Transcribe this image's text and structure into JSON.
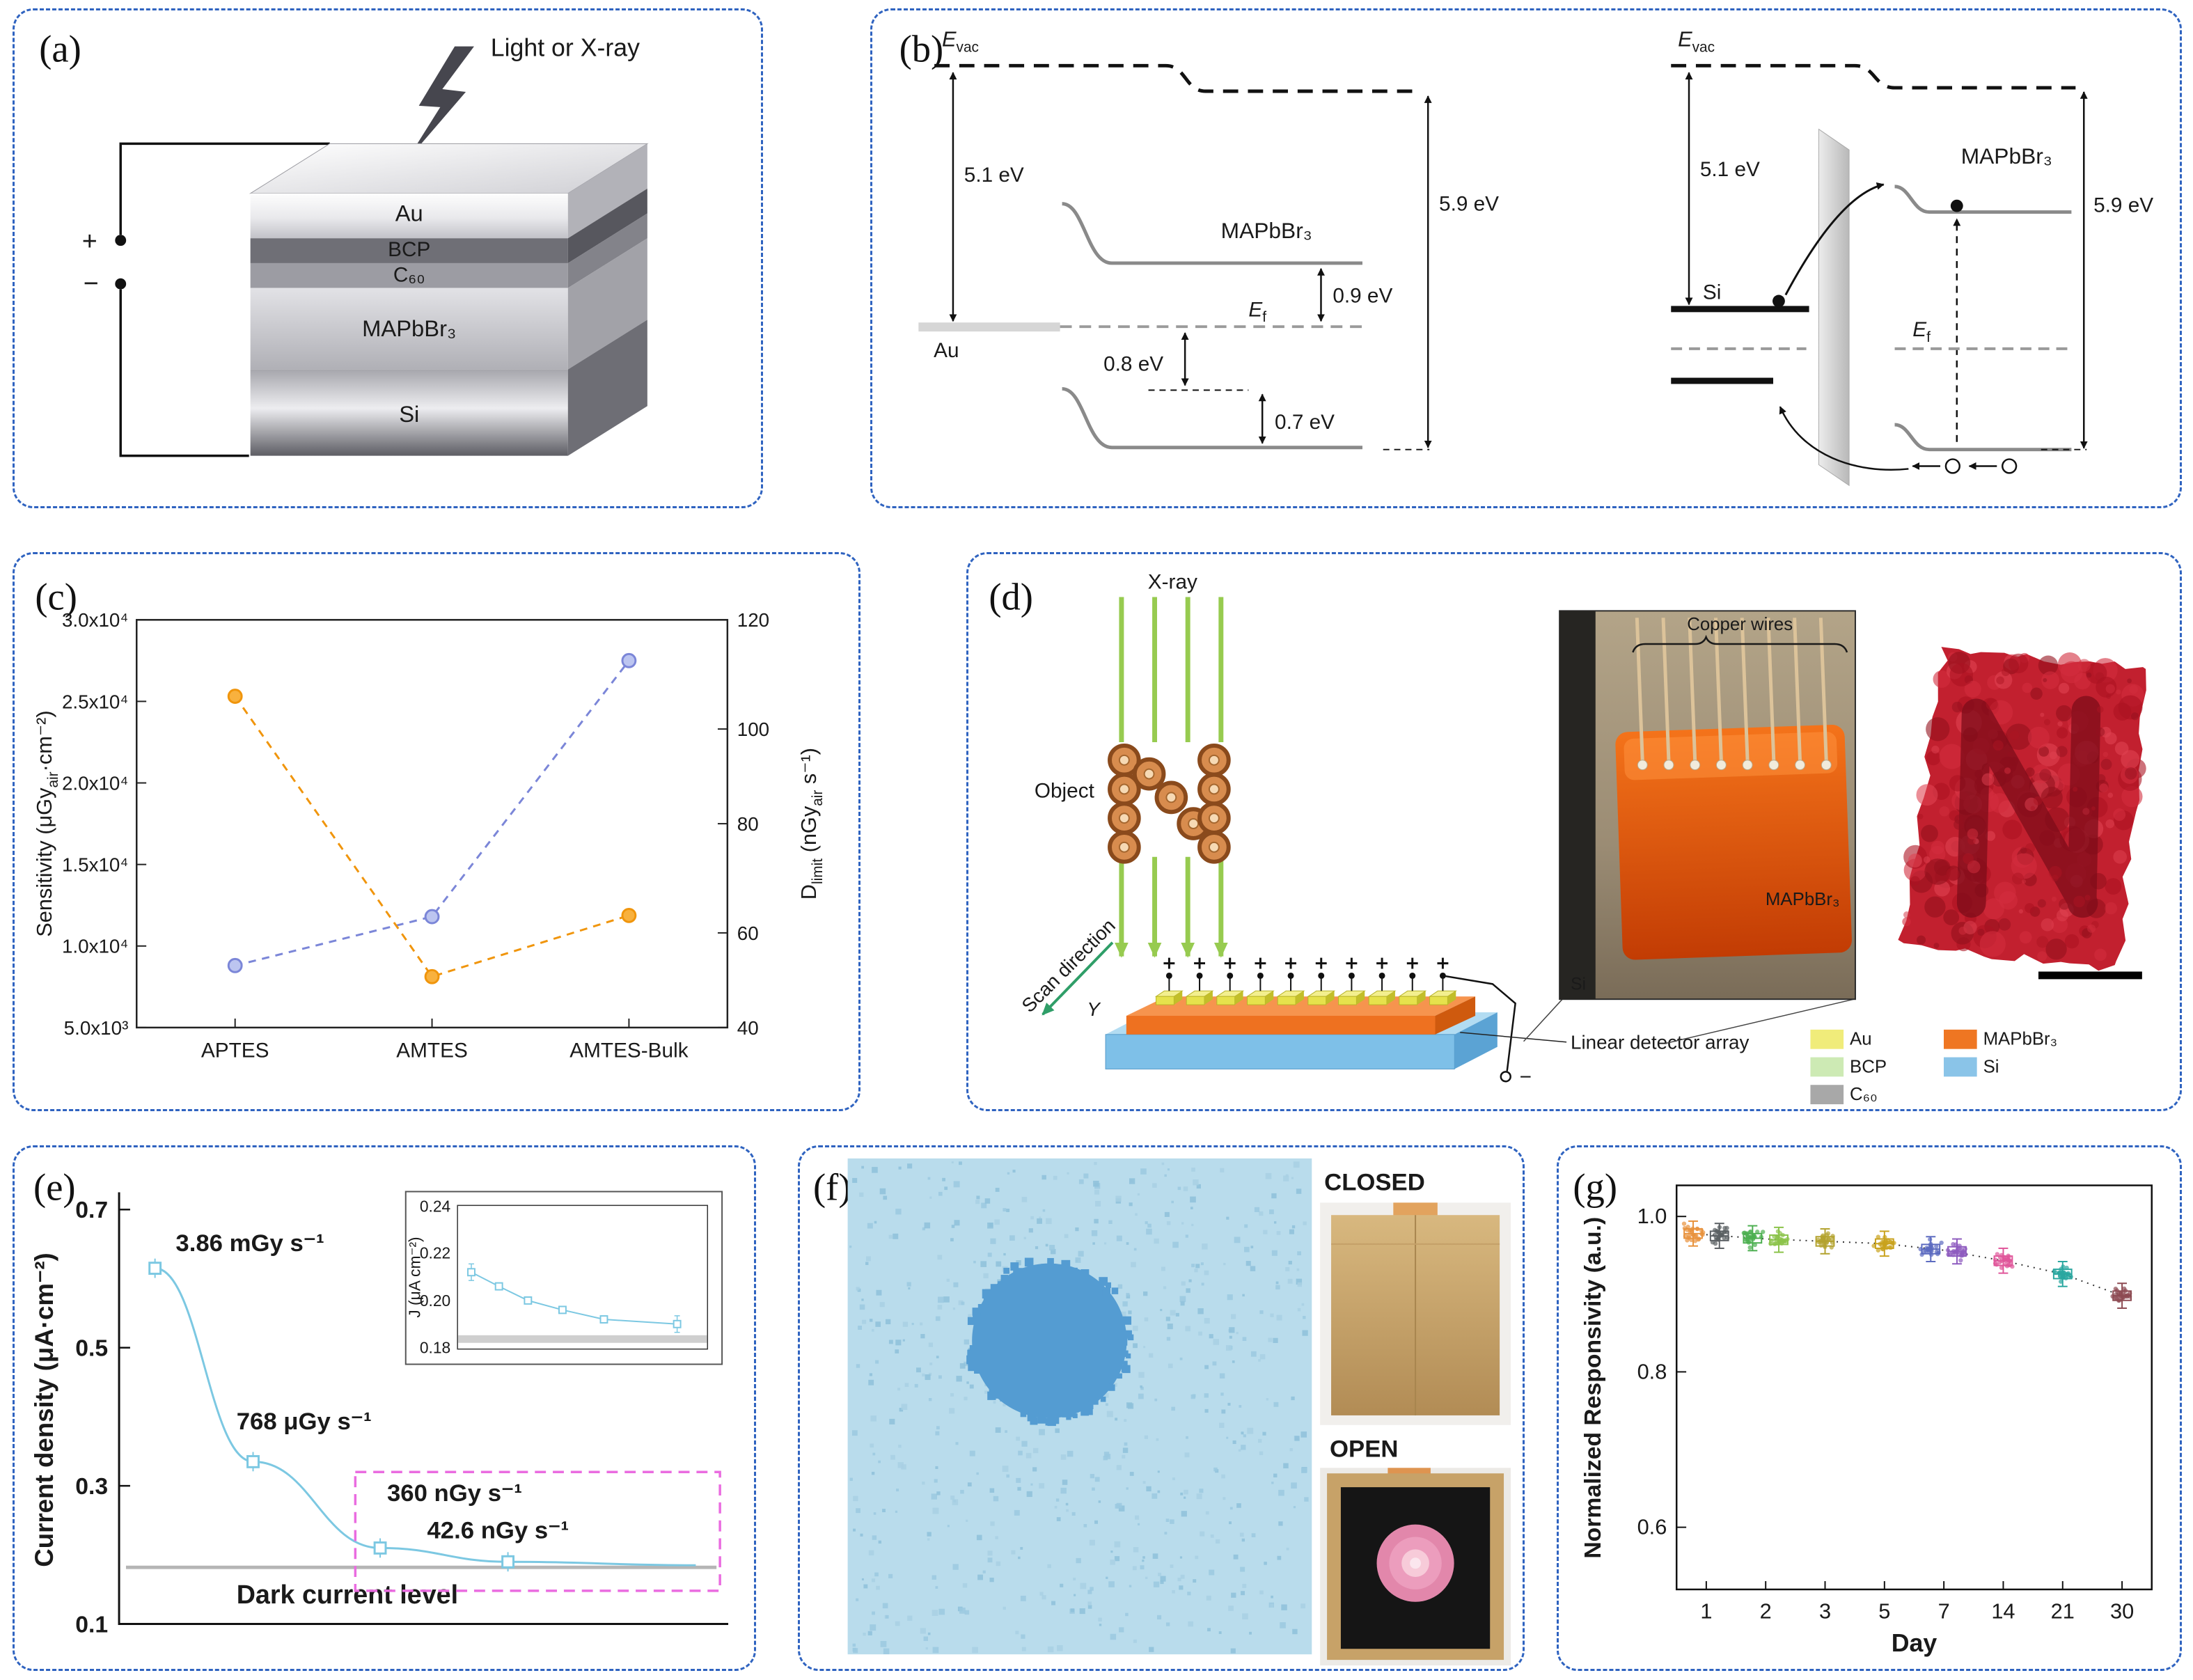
{
  "figure": {
    "panel_labels": {
      "a": "(a)",
      "b": "(b)",
      "c": "(c)",
      "d": "(d)",
      "e": "(e)",
      "f": "(f)",
      "g": "(g)"
    }
  },
  "panel_a": {
    "beam_label": "Light or X-ray",
    "plus": "+",
    "minus": "−",
    "layers": [
      {
        "name": "Au"
      },
      {
        "name": "BCP"
      },
      {
        "name": "C₆₀"
      },
      {
        "name": "MAPbBr₃"
      },
      {
        "name": "Si"
      }
    ]
  },
  "panel_b": {
    "left": {
      "evac_main": "E",
      "evac_sub": "vac",
      "v51": "5.1 eV",
      "v59": "5.9 eV",
      "au": "Au",
      "mapbbr": "MAPbBr₃",
      "ef_main": "E",
      "ef_sub": "f",
      "v09": "0.9 eV",
      "v08": "0.8 eV",
      "v07": "0.7 eV"
    },
    "right": {
      "evac_main": "E",
      "evac_sub": "vac",
      "v51": "5.1 eV",
      "v59": "5.9 eV",
      "si": "Si",
      "mapbbr": "MAPbBr₃",
      "ef_main": "E",
      "ef_sub": "f"
    }
  },
  "panel_d": {
    "xray": "X-ray",
    "object": "Object",
    "scan": "Scan direction",
    "y_axis": "Y",
    "detector": "Linear detector array",
    "copper": "Copper wires",
    "crystal": "MAPbBr₃",
    "si": "Si",
    "minus": "−",
    "legend": [
      {
        "label": "Au",
        "color": "#f0ec7a"
      },
      {
        "label": "BCP",
        "color": "#cdeab4"
      },
      {
        "label": "C₆₀",
        "color": "#a8a8a8"
      },
      {
        "label": "MAPbBr₃",
        "color": "#ef7622"
      },
      {
        "label": "Si",
        "color": "#8ac4e8"
      }
    ]
  },
  "panel_f": {
    "closed": "CLOSED",
    "open": "OPEN",
    "bg": "#b9dcec",
    "circle_color": "#549cd2"
  },
  "chart_data": [
    {
      "id": "c",
      "type": "line",
      "categories": [
        "APTES",
        "AMTES",
        "AMTES-Bulk"
      ],
      "left_axis": {
        "label_pre": "Sensitivity (μGy",
        "label_sub": "air",
        "label_post": "·cm⁻²)",
        "ticks": [
          "5.0x10³",
          "1.0x10⁴",
          "1.5x10⁴",
          "2.0x10⁴",
          "2.5x10⁴",
          "3.0x10⁴"
        ],
        "min": 5000,
        "max": 30000,
        "color": "#7b86d8"
      },
      "right_axis": {
        "label_main": "D",
        "label_sub": "limit",
        "label_mid": " (nGy",
        "label_sub2": "air",
        "label_post": " s⁻¹)",
        "ticks": [
          "40",
          "60",
          "80",
          "100",
          "120"
        ],
        "min": 40,
        "max": 120,
        "color": "#f0950c"
      },
      "series": [
        {
          "name": "Sensitivity",
          "axis": "left",
          "color": "#7b86d8",
          "fill": "#bcc5f0",
          "values": [
            8800,
            11800,
            27500
          ]
        },
        {
          "name": "Dlimit",
          "axis": "right",
          "color": "#f0950c",
          "fill": "#f8b13e",
          "values": [
            105,
            50,
            62
          ]
        }
      ],
      "line_style": "dashed",
      "grid": false
    },
    {
      "id": "e",
      "type": "line",
      "ylabel": "Current density (μA·cm⁻²)",
      "ytick_labels": [
        "0.1",
        "0.3",
        "0.5",
        "0.7"
      ],
      "ylim": [
        0.1,
        0.7
      ],
      "values": [
        0.615,
        0.335,
        0.21,
        0.19
      ],
      "annotations": {
        "p1": "3.86 mGy s⁻¹",
        "p2": "768 μGy s⁻¹",
        "p3": "360 nGy s⁻¹",
        "p4": "42.6 nGy s⁻¹",
        "dark": "Dark current level"
      },
      "dark_current_level": 0.182,
      "color": "#7cc8e2",
      "inset": {
        "ylabel": "J (μA cm⁻²)",
        "ytick_labels": [
          "0.18",
          "0.20",
          "0.22",
          "0.24"
        ],
        "ylim": [
          0.18,
          0.24
        ],
        "values": [
          0.212,
          0.206,
          0.2,
          0.196,
          0.192,
          0.19
        ],
        "band_level": 0.183
      }
    },
    {
      "id": "g",
      "type": "scatter",
      "xlabel": "Day",
      "ylabel": "Normalized Responsivity (a.u.)",
      "ytick_labels": [
        "0.6",
        "0.8",
        "1.0"
      ],
      "ymin": 0.52,
      "ymax": 1.04,
      "categories": [
        "1",
        "2",
        "3",
        "5",
        "7",
        "14",
        "21",
        "30"
      ],
      "points_per_cluster": 26,
      "clusters": [
        {
          "day": "1",
          "offset": -1,
          "mean": 0.978,
          "color": "#e8923c"
        },
        {
          "day": "1",
          "offset": 1,
          "mean": 0.975,
          "color": "#5a5f63"
        },
        {
          "day": "2",
          "offset": -1,
          "mean": 0.972,
          "color": "#4caf50"
        },
        {
          "day": "2",
          "offset": 1,
          "mean": 0.97,
          "color": "#8bc34a"
        },
        {
          "day": "3",
          "offset": 0,
          "mean": 0.968,
          "color": "#b3a22e"
        },
        {
          "day": "5",
          "offset": 0,
          "mean": 0.965,
          "color": "#c9a21d"
        },
        {
          "day": "7",
          "offset": -1,
          "mean": 0.958,
          "color": "#5c6bc0"
        },
        {
          "day": "7",
          "offset": 1,
          "mean": 0.955,
          "color": "#8e5bbf"
        },
        {
          "day": "14",
          "offset": 0,
          "mean": 0.943,
          "color": "#e0569a"
        },
        {
          "day": "21",
          "offset": 0,
          "mean": 0.926,
          "color": "#2aa7a0"
        },
        {
          "day": "30",
          "offset": 0,
          "mean": 0.898,
          "color": "#8d4a52"
        }
      ]
    }
  ]
}
